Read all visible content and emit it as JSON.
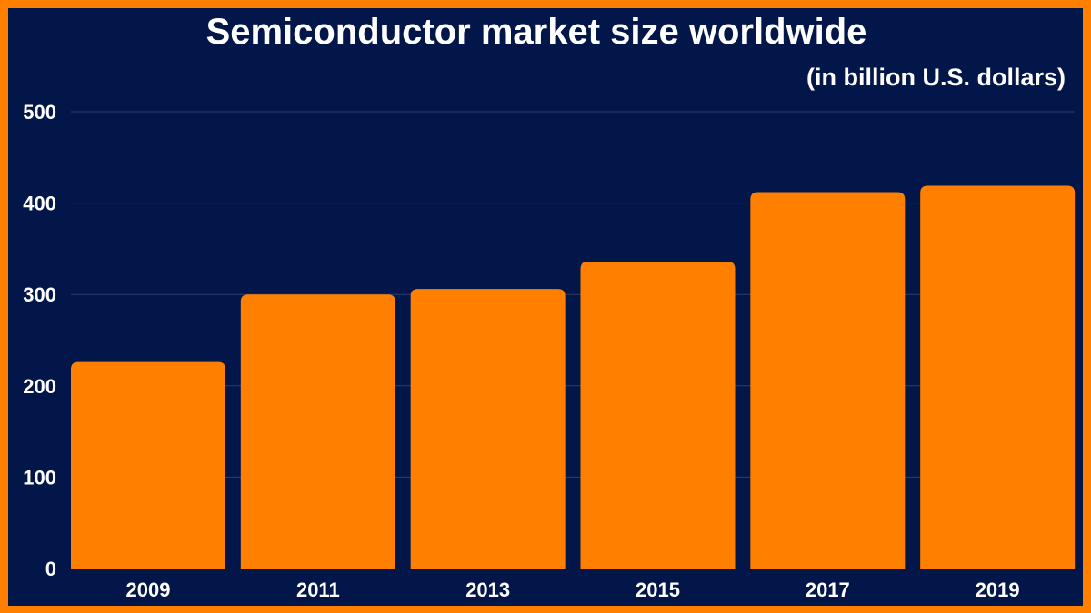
{
  "chart_data": {
    "type": "bar",
    "title": "Semiconductor market size worldwide",
    "subtitle": "(in billion U.S. dollars)",
    "categories": [
      "2009",
      "2011",
      "2013",
      "2015",
      "2017",
      "2019"
    ],
    "values": [
      226,
      300,
      306,
      336,
      412,
      419
    ],
    "ylim": [
      0,
      500
    ],
    "yticks": [
      "0",
      "100",
      "200",
      "300",
      "400",
      "500"
    ],
    "grid": true,
    "colors": {
      "bar": "#ff7f00",
      "background": "#03164a",
      "border": "#ff7f00",
      "grid": "#2e3d6e",
      "text": "#ffffff"
    }
  }
}
